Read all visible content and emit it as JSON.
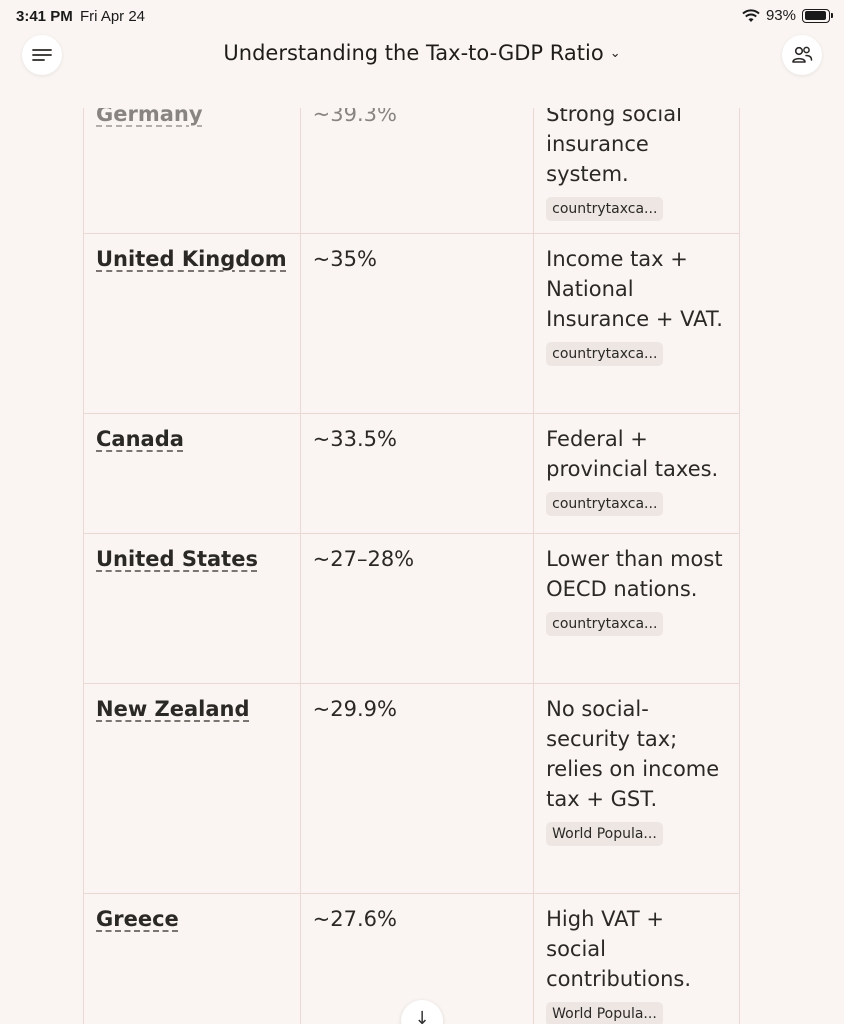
{
  "status": {
    "time": "3:41 PM",
    "date": "Fri Apr 24",
    "battery": "93%",
    "battery_level": 0.93
  },
  "header": {
    "title": "Understanding the Tax-to-GDP Ratio",
    "chevron": "⌄"
  },
  "icons": {
    "menu": "menu-icon",
    "people": "people-icon",
    "wifi": "wifi-icon",
    "scroll": "arrow-down-icon"
  },
  "rows": [
    {
      "country": "Germany",
      "ratio": "~39.3%",
      "note": "Strong social insurance system.",
      "source": "countrytaxca..."
    },
    {
      "country": "United Kingdom",
      "ratio": "~35%",
      "note": "Income tax + National Insurance + VAT.",
      "source": "countrytaxca..."
    },
    {
      "country": "Canada",
      "ratio": "~33.5%",
      "note": "Federal + provincial taxes.",
      "source": "countrytaxca..."
    },
    {
      "country": "United States",
      "ratio": "~27–28%",
      "note": "Lower than most OECD nations.",
      "source": "countrytaxca..."
    },
    {
      "country": "New Zealand",
      "ratio": "~29.9%",
      "note": "No social-security tax; relies on income tax + GST.",
      "source": "World Popula..."
    },
    {
      "country": "Greece",
      "ratio": "~27.6%",
      "note": "High VAT + social contributions.",
      "source": "World Popula..."
    }
  ]
}
